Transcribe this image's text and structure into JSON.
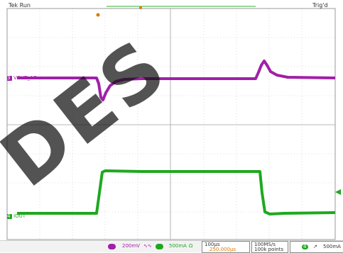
{
  "header": {
    "status": "Tek Run",
    "trigger_status": "Trig'd"
  },
  "traces": {
    "ch3": {
      "number": "3",
      "label": "VOUT_AC",
      "color": "#a020a8"
    },
    "ch4": {
      "number": "4",
      "label": "IOUT",
      "color": "#1fa81f"
    }
  },
  "statusbar": {
    "ch3_scale": "200mV",
    "ch3_coupling": "∿∿",
    "ch4_scale": "500mA",
    "ch4_coupling": "Ω",
    "timebase": "100µs",
    "trigger_pos": "250.000µs",
    "sample_rate": "100MS/s",
    "record_length": "100k points",
    "trigger_source": "4",
    "trigger_level": "500mA"
  },
  "watermark": "DES",
  "colors": {
    "grid": "#b8b8b8",
    "trigger": "#e07800",
    "watermark": "#1a1a1a"
  }
}
